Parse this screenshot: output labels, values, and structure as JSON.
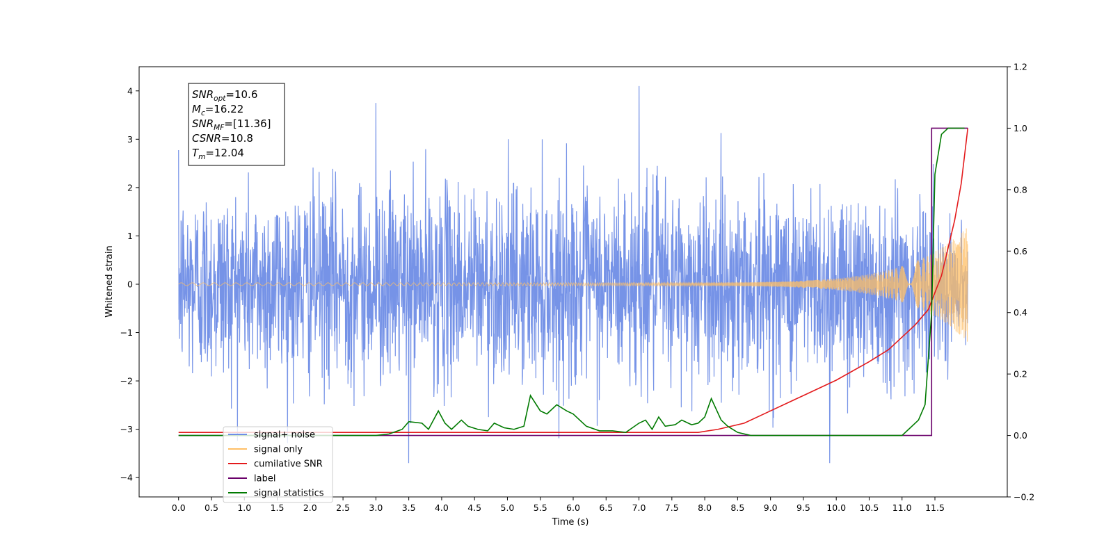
{
  "chart_data": {
    "type": "line",
    "xlabel": "Time (s)",
    "ylabel": "Whitened strain",
    "xlim": [
      -0.6,
      12.6
    ],
    "ylim": [
      -4.4,
      4.5
    ],
    "y2lim": [
      -0.2,
      1.2
    ],
    "x_ticks": [
      "0.0",
      "0.5",
      "1.0",
      "1.5",
      "2.0",
      "2.5",
      "3.0",
      "3.5",
      "4.0",
      "4.5",
      "5.0",
      "5.5",
      "6.0",
      "6.5",
      "7.0",
      "7.5",
      "8.0",
      "8.5",
      "9.0",
      "9.5",
      "10.0",
      "10.5",
      "11.0",
      "11.5"
    ],
    "y_ticks": [
      "4",
      "3",
      "2",
      "1",
      "0",
      "−1",
      "−2",
      "−3",
      "−4"
    ],
    "y2_ticks": [
      "1.2",
      "1.0",
      "0.8",
      "0.6",
      "0.4",
      "0.2",
      "0.0",
      "−0.2"
    ],
    "series": [
      {
        "name": "signal+ noise",
        "color": "#6f8de6",
        "axis": "left",
        "description_values": "noise band roughly between -2.9 and 3.0 with spikes up to 4.1 at t=7.0 and down to -3.7 at t=3.5 and 9.9; t from 0.0 to 12.0"
      },
      {
        "name": "signal only",
        "color": "#ffbf66",
        "axis": "left",
        "x_range": [
          0.0,
          12.0
        ],
        "amplitude_at_end": 1.2
      },
      {
        "name": "cumilative SNR",
        "color": "#e31a1c",
        "axis": "right",
        "points": [
          [
            0.0,
            0.01
          ],
          [
            7.9,
            0.01
          ],
          [
            8.2,
            0.02
          ],
          [
            8.6,
            0.04
          ],
          [
            9.0,
            0.08
          ],
          [
            9.5,
            0.13
          ],
          [
            10.0,
            0.18
          ],
          [
            10.5,
            0.24
          ],
          [
            10.8,
            0.28
          ],
          [
            11.0,
            0.32
          ],
          [
            11.2,
            0.36
          ],
          [
            11.4,
            0.41
          ],
          [
            11.6,
            0.52
          ],
          [
            11.8,
            0.7
          ],
          [
            11.9,
            0.82
          ],
          [
            12.0,
            1.0
          ]
        ]
      },
      {
        "name": "label",
        "color": "#6a006a",
        "axis": "right",
        "points": [
          [
            0.0,
            0.0
          ],
          [
            11.45,
            0.0
          ],
          [
            11.45,
            1.0
          ],
          [
            12.0,
            1.0
          ]
        ]
      },
      {
        "name": "signal statistics",
        "color": "#007a00",
        "axis": "right",
        "points": [
          [
            0.0,
            0.0
          ],
          [
            0.5,
            0.0
          ],
          [
            1.0,
            0.0
          ],
          [
            1.5,
            0.0
          ],
          [
            2.0,
            0.0
          ],
          [
            2.5,
            0.0
          ],
          [
            3.0,
            0.0
          ],
          [
            3.2,
            0.005
          ],
          [
            3.4,
            0.02
          ],
          [
            3.5,
            0.045
          ],
          [
            3.7,
            0.04
          ],
          [
            3.8,
            0.02
          ],
          [
            3.95,
            0.08
          ],
          [
            4.05,
            0.04
          ],
          [
            4.15,
            0.02
          ],
          [
            4.3,
            0.05
          ],
          [
            4.4,
            0.03
          ],
          [
            4.55,
            0.02
          ],
          [
            4.7,
            0.015
          ],
          [
            4.8,
            0.04
          ],
          [
            4.95,
            0.025
          ],
          [
            5.1,
            0.02
          ],
          [
            5.25,
            0.03
          ],
          [
            5.35,
            0.13
          ],
          [
            5.5,
            0.08
          ],
          [
            5.6,
            0.07
          ],
          [
            5.75,
            0.1
          ],
          [
            5.9,
            0.08
          ],
          [
            6.0,
            0.07
          ],
          [
            6.2,
            0.03
          ],
          [
            6.4,
            0.015
          ],
          [
            6.6,
            0.015
          ],
          [
            6.8,
            0.01
          ],
          [
            7.0,
            0.04
          ],
          [
            7.1,
            0.05
          ],
          [
            7.2,
            0.02
          ],
          [
            7.3,
            0.06
          ],
          [
            7.4,
            0.03
          ],
          [
            7.55,
            0.035
          ],
          [
            7.65,
            0.05
          ],
          [
            7.8,
            0.035
          ],
          [
            7.9,
            0.04
          ],
          [
            8.0,
            0.06
          ],
          [
            8.1,
            0.12
          ],
          [
            8.25,
            0.05
          ],
          [
            8.35,
            0.03
          ],
          [
            8.5,
            0.01
          ],
          [
            8.7,
            0.0
          ],
          [
            9.0,
            0.0
          ],
          [
            10.0,
            0.0
          ],
          [
            10.5,
            0.0
          ],
          [
            11.0,
            0.0
          ],
          [
            11.1,
            0.02
          ],
          [
            11.25,
            0.05
          ],
          [
            11.35,
            0.1
          ],
          [
            11.45,
            0.4
          ],
          [
            11.5,
            0.85
          ],
          [
            11.6,
            0.98
          ],
          [
            11.7,
            1.0
          ],
          [
            11.95,
            1.0
          ]
        ]
      }
    ],
    "legend_placement": "lower-left",
    "annotation": {
      "lines": [
        {
          "base": "SNR",
          "sub": "opt",
          "value": "=10.6"
        },
        {
          "base": "M",
          "sub": "c",
          "value": "=16.22"
        },
        {
          "base": "SNR",
          "sub": "MF",
          "value": "=[11.36]"
        },
        {
          "base": "CSNR",
          "sub": "",
          "value": "=10.8"
        },
        {
          "base": "T",
          "sub": "m",
          "value": "=12.04"
        }
      ]
    },
    "grid": false
  }
}
